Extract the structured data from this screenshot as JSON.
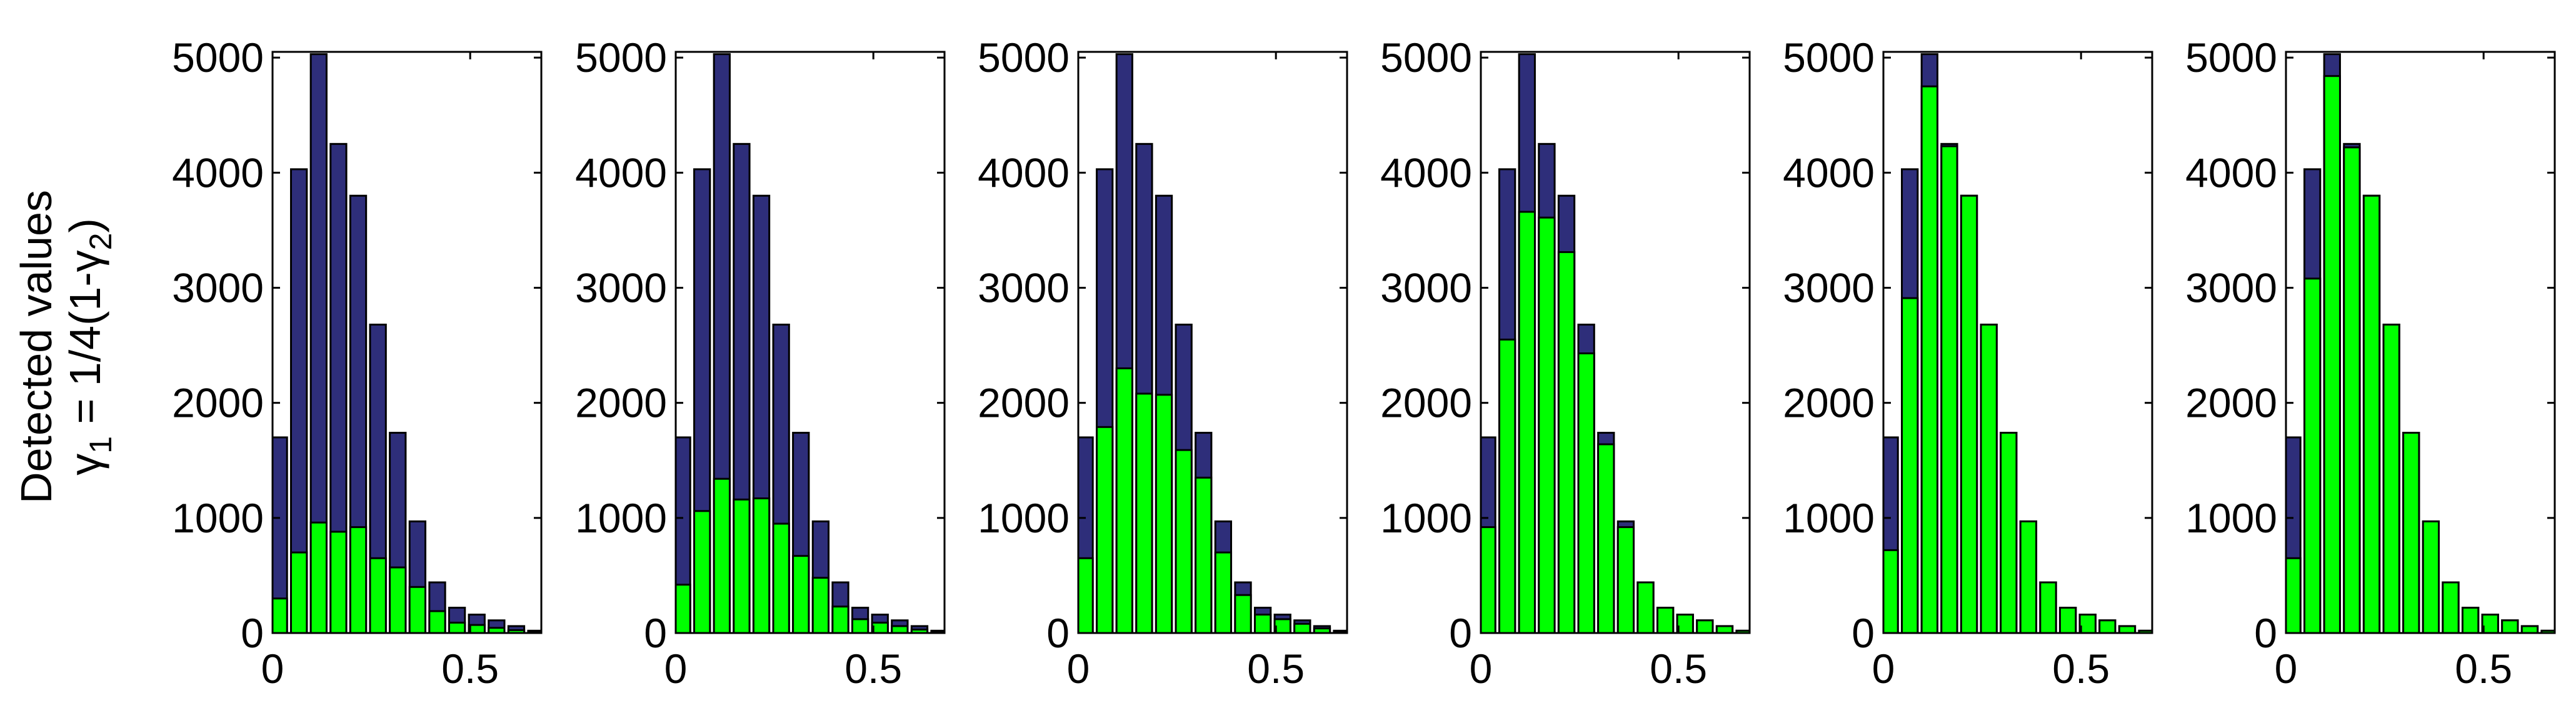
{
  "chart_data": {
    "type": "bar",
    "layout": "small multiples, overlaid histograms",
    "ylabel": {
      "line1": "Detected values",
      "line2_main": "γ",
      "line2_sub1": "1",
      "line2_mid": " = 1/4(1-γ",
      "line2_sub2": "2",
      "line2_end": ")"
    },
    "xlim": [
      0,
      0.68
    ],
    "ylim": [
      0,
      5050
    ],
    "xticks": [
      0,
      0.5
    ],
    "xtick_labels": [
      "0",
      "0.5"
    ],
    "yticks": [
      0,
      1000,
      2000,
      3000,
      4000,
      5000
    ],
    "ytick_labels": [
      "0",
      "1000",
      "2000",
      "3000",
      "4000",
      "5000"
    ],
    "colors": {
      "total": "#2e2e7a",
      "detected": "#00ff00"
    },
    "bin_centers": [
      0.0167,
      0.0667,
      0.1167,
      0.1667,
      0.2167,
      0.2667,
      0.3167,
      0.3667,
      0.4167,
      0.4667,
      0.5167,
      0.5667,
      0.6167,
      0.6667
    ],
    "total_values": [
      1700,
      4030,
      5030,
      4250,
      3800,
      2680,
      1740,
      970,
      440,
      220,
      160,
      110,
      60,
      20
    ],
    "panels": [
      {
        "detected_values": [
          300,
          700,
          960,
          880,
          920,
          650,
          570,
          400,
          190,
          90,
          70,
          45,
          25,
          8
        ]
      },
      {
        "detected_values": [
          420,
          1060,
          1340,
          1160,
          1170,
          950,
          670,
          480,
          230,
          120,
          90,
          60,
          30,
          10
        ]
      },
      {
        "detected_values": [
          650,
          1790,
          2300,
          2080,
          2070,
          1590,
          1350,
          700,
          330,
          160,
          120,
          80,
          40,
          12
        ]
      },
      {
        "detected_values": [
          920,
          2550,
          3660,
          3610,
          3310,
          2430,
          1640,
          920,
          440,
          220,
          160,
          110,
          60,
          20
        ]
      },
      {
        "detected_values": [
          720,
          2910,
          4750,
          4230,
          3800,
          2680,
          1740,
          970,
          440,
          220,
          160,
          110,
          60,
          20
        ]
      },
      {
        "detected_values": [
          650,
          3080,
          4840,
          4220,
          3800,
          2680,
          1740,
          970,
          440,
          220,
          160,
          110,
          60,
          20
        ]
      }
    ]
  }
}
